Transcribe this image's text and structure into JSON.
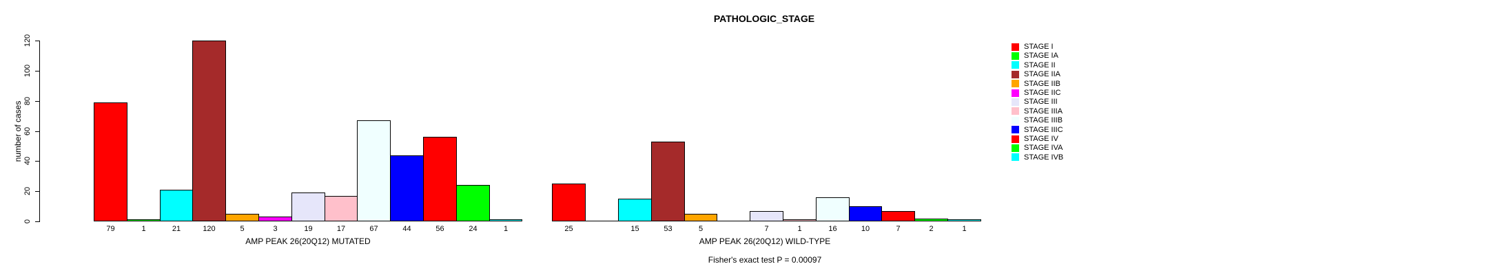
{
  "title": "PATHOLOGIC_STAGE",
  "chart_data": {
    "type": "bar",
    "title": "PATHOLOGIC_STAGE",
    "xlabel": "",
    "ylabel": "number of cases",
    "ylim": [
      0,
      120
    ],
    "yticks": [
      0,
      20,
      40,
      60,
      80,
      100,
      120
    ],
    "grid": false,
    "legend_position": "right",
    "bar_value_labels_shown": true,
    "categories": [
      "STAGE I",
      "STAGE IA",
      "STAGE II",
      "STAGE IIA",
      "STAGE IIB",
      "STAGE IIC",
      "STAGE III",
      "STAGE IIIA",
      "STAGE IIIB",
      "STAGE IIIC",
      "STAGE IV",
      "STAGE IVA",
      "STAGE IVB"
    ],
    "palette": [
      "#FF0000",
      "#00FF00",
      "#00FFFF",
      "#A52A2A",
      "#FFA500",
      "#FF00FF",
      "#E6E6FA",
      "#FFC0CB",
      "#F0FFFF",
      "#0000FF",
      "#FF0000",
      "#00FF00",
      "#00FFFF"
    ],
    "series": [
      {
        "name": "AMP PEAK 26(20Q12) MUTATED",
        "values": [
          79,
          1,
          21,
          120,
          5,
          3,
          19,
          17,
          67,
          44,
          56,
          24,
          1
        ]
      },
      {
        "name": "AMP PEAK 26(20Q12) WILD-TYPE",
        "values": [
          25,
          0,
          15,
          53,
          5,
          0,
          7,
          1,
          16,
          10,
          7,
          2,
          1
        ]
      }
    ],
    "annotation": "Fisher's exact test P = 0.00097"
  }
}
